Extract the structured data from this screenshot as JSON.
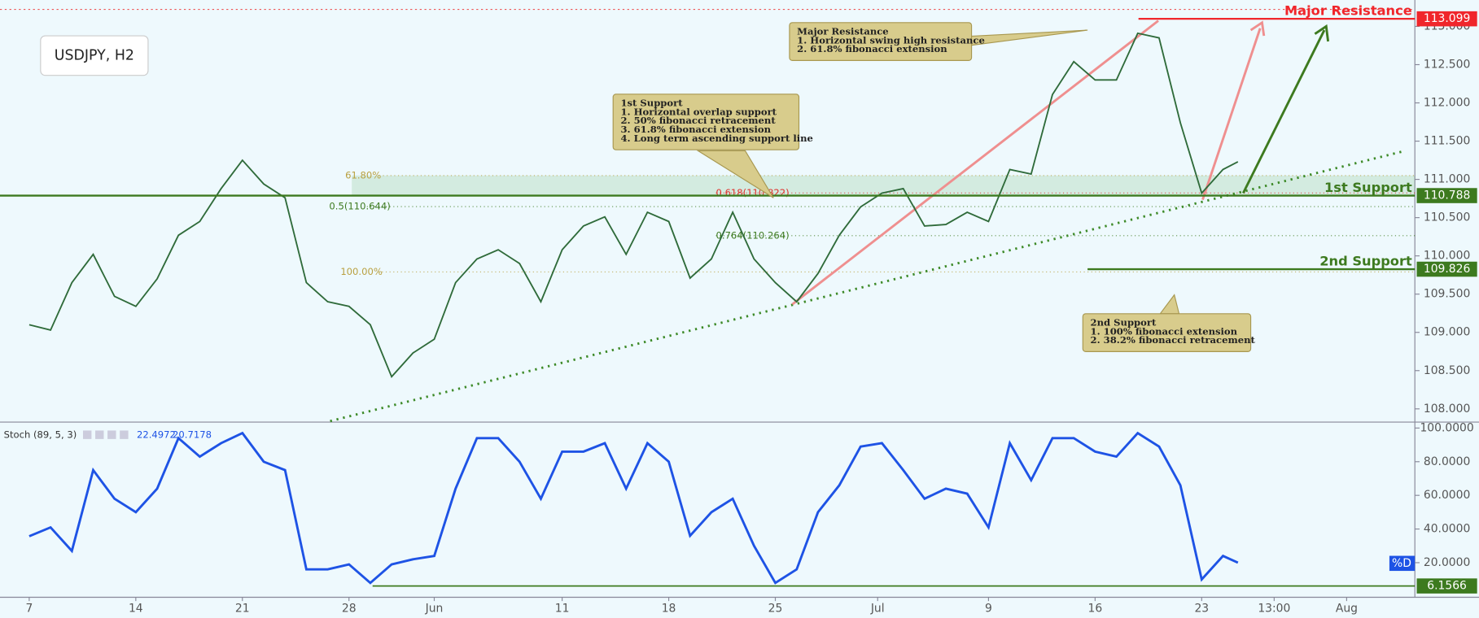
{
  "chart_data": [
    {
      "type": "line",
      "title": "USDJPY, H2",
      "color": "#2f6b3a",
      "x": [
        0,
        1,
        2,
        3,
        4,
        5,
        6,
        7,
        8,
        9,
        10,
        11,
        12,
        13,
        14,
        15,
        16,
        17,
        18,
        19,
        20,
        21,
        22,
        23,
        24,
        25,
        26,
        27,
        28,
        29,
        30,
        31,
        32,
        33,
        34,
        35,
        36,
        37,
        38,
        39,
        40,
        41,
        42,
        43,
        44,
        45,
        46,
        47,
        48,
        49,
        50,
        51,
        52,
        53,
        54,
        55,
        56,
        56.7
      ],
      "values": [
        109.1,
        109.03,
        109.65,
        110.02,
        109.47,
        109.34,
        109.7,
        110.27,
        110.45,
        110.88,
        111.25,
        110.94,
        110.76,
        109.65,
        109.4,
        109.34,
        109.1,
        108.42,
        108.73,
        108.91,
        109.65,
        109.96,
        110.08,
        109.9,
        109.4,
        110.08,
        110.39,
        110.51,
        110.02,
        110.57,
        110.45,
        109.71,
        109.96,
        110.57,
        109.96,
        109.65,
        109.4,
        109.77,
        110.27,
        110.64,
        110.82,
        110.88,
        110.39,
        110.41,
        110.57,
        110.45,
        111.13,
        111.07,
        112.11,
        112.54,
        112.3,
        112.3,
        112.91,
        112.85,
        111.74,
        110.82,
        111.13,
        111.23
      ],
      "xlim": [
        -1.37,
        65
      ],
      "xticks": [
        {
          "value": 0,
          "label": "7"
        },
        {
          "value": 5,
          "label": "14"
        },
        {
          "value": 10,
          "label": "21"
        },
        {
          "value": 15,
          "label": "28"
        },
        {
          "value": 19,
          "label": "Jun"
        },
        {
          "value": 25,
          "label": "11"
        },
        {
          "value": 30,
          "label": "18"
        },
        {
          "value": 35,
          "label": "25"
        },
        {
          "value": 39.8,
          "label": "Jul"
        },
        {
          "value": 45,
          "label": "9"
        },
        {
          "value": 50,
          "label": "16"
        },
        {
          "value": 55,
          "label": "23"
        },
        {
          "value": 58.4,
          "label": "13:00"
        },
        {
          "value": 61.8,
          "label": "Aug"
        }
      ],
      "ylim": [
        107.84,
        113.345
      ],
      "yticks": [
        {
          "value": 108,
          "label": "108.000"
        },
        {
          "value": 108.5,
          "label": "108.500"
        },
        {
          "value": 109,
          "label": "109.000"
        },
        {
          "value": 109.5,
          "label": "109.500"
        },
        {
          "value": 110,
          "label": "110.000"
        },
        {
          "value": 110.5,
          "label": "110.500"
        },
        {
          "value": 111,
          "label": "111.000"
        },
        {
          "value": 111.5,
          "label": "111.500"
        },
        {
          "value": 112,
          "label": "112.000"
        },
        {
          "value": 112.5,
          "label": "112.500"
        },
        {
          "value": 113,
          "label": "113.000"
        }
      ],
      "levels": [
        {
          "name": "Major Resistance",
          "value": {
            "value": 113.099,
            "label": "113.099"
          },
          "color": "#f0262b"
        },
        {
          "name": "1st Support",
          "value": {
            "value": 110.788,
            "label": "110.788"
          },
          "color": "#3d7a1f"
        },
        {
          "name": "2nd Support",
          "value": {
            "value": 109.826,
            "label": "109.826"
          },
          "color": "#3d7a1f"
        }
      ],
      "fib_levels": [
        {
          "value": 111.05,
          "label": "61.80%",
          "color": "#b9a040"
        },
        {
          "value": 110.644,
          "label": "0.5(110.644)",
          "color": "#3d7a1f"
        },
        {
          "value": 110.822,
          "label": "0.618(110.822)",
          "color": "#e0302b"
        },
        {
          "value": 110.264,
          "label": "0.764(110.264)",
          "color": "#3d7a1f"
        },
        {
          "value": 109.79,
          "label": "100.00%",
          "color": "#b9a040"
        }
      ],
      "annotations": [
        {
          "lines": [
            "Major Resistance",
            "1. Horizontal swing high resistance",
            "2. 61.8% fibonacci extension"
          ]
        },
        {
          "lines": [
            "1st Support",
            "1. Horizontal overlap support",
            "2. 50% fibonacci retracement",
            "3. 61.8% fibonacci extension",
            "4. Long term ascending support line"
          ]
        },
        {
          "lines": [
            "2nd Support",
            "1. 100% fibonacci extension",
            "2. 38.2% fibonacci retracement"
          ]
        }
      ]
    },
    {
      "type": "line",
      "title": "Stoch (89, 5, 3)",
      "readings": [
        22.4972,
        20.7178
      ],
      "x": [
        0,
        1,
        2,
        3,
        4,
        5,
        6,
        7,
        8,
        9,
        10,
        11,
        12,
        13,
        14,
        15,
        16,
        17,
        18,
        19,
        20,
        21,
        22,
        23,
        24,
        25,
        26,
        27,
        28,
        29,
        30,
        31,
        32,
        33,
        34,
        35,
        36,
        37,
        38,
        39,
        40,
        41,
        42,
        43,
        44,
        45,
        46,
        47,
        48,
        49,
        50,
        51,
        52,
        53,
        54,
        55,
        56,
        56.7
      ],
      "series": [
        {
          "name": "%D",
          "color": "#1e53e5",
          "values": [
            35.7,
            41,
            27,
            75,
            58,
            50,
            64,
            94,
            83,
            91,
            97,
            80,
            75,
            16,
            16,
            19,
            8,
            19,
            22,
            24,
            64,
            94,
            94,
            80,
            58,
            86,
            86,
            91,
            64,
            91,
            80,
            36,
            50,
            58,
            30,
            8,
            16,
            50,
            66,
            89,
            91,
            75,
            58,
            64,
            61,
            41,
            91,
            69,
            94,
            94,
            86,
            83,
            97,
            89,
            66,
            10,
            24,
            20
          ]
        }
      ],
      "ylim": [
        0,
        103
      ],
      "yticks": [
        {
          "value": 20,
          "label": "20.0000"
        },
        {
          "value": 40,
          "label": "40.0000"
        },
        {
          "value": 60,
          "label": "60.0000"
        },
        {
          "value": 80,
          "label": "80.0000"
        },
        {
          "value": 100,
          "label": "100.0000"
        }
      ],
      "level": {
        "value": 6.1566,
        "color": "#3d7a1f"
      }
    }
  ]
}
